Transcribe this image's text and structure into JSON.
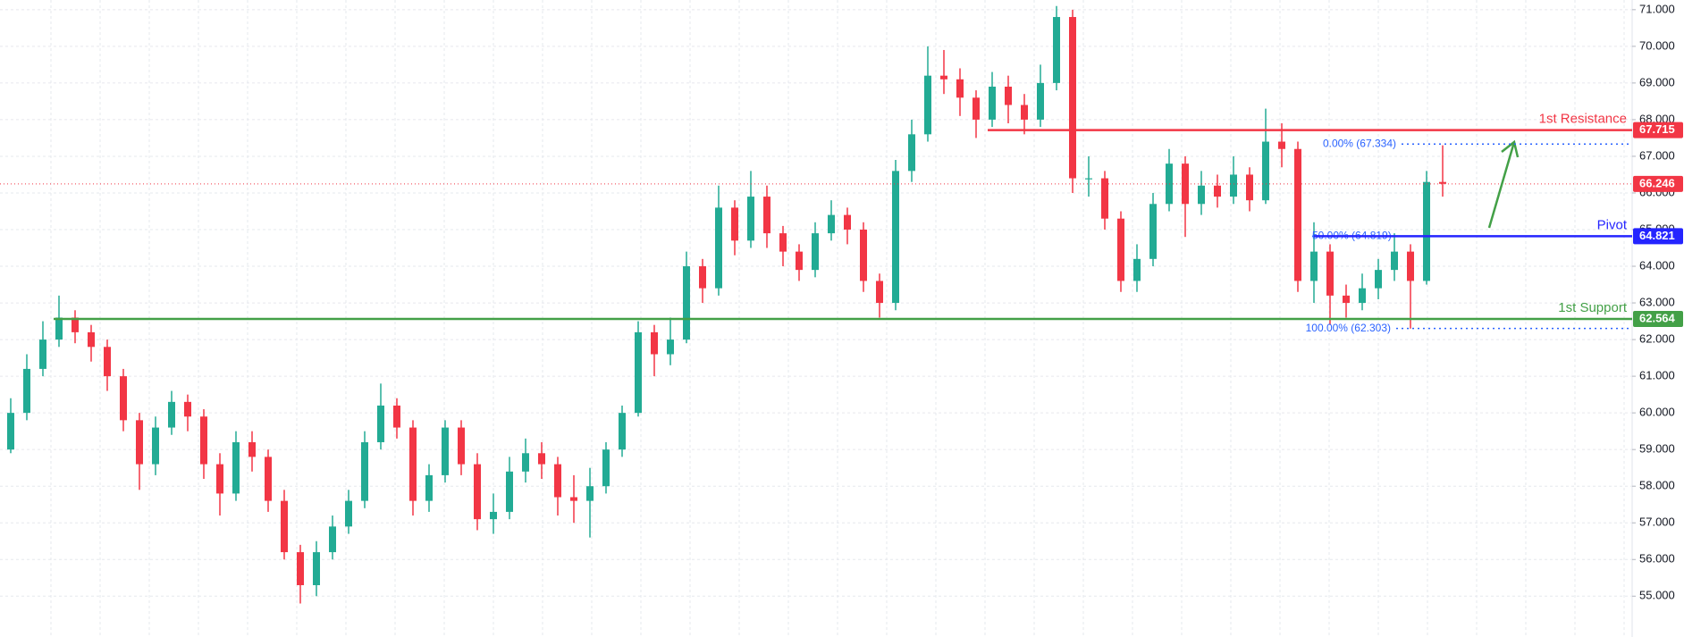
{
  "chart_data": {
    "type": "candlestick",
    "up_color": "#22ab94",
    "down_color": "#f23645",
    "open": [
      59.0,
      60.0,
      61.2,
      62.0,
      62.6,
      62.2,
      61.8,
      61.0,
      59.8,
      58.6,
      59.6,
      60.3,
      59.9,
      58.6,
      57.8,
      59.2,
      58.8,
      57.6,
      56.2,
      55.3,
      56.2,
      56.9,
      57.6,
      59.2,
      60.2,
      59.6,
      57.6,
      58.3,
      59.6,
      58.6,
      57.1,
      57.3,
      58.4,
      58.9,
      58.6,
      57.7,
      57.6,
      58.0,
      59.0,
      60.0,
      62.2,
      61.6,
      62.0,
      64.0,
      63.4,
      65.6,
      64.7,
      65.9,
      64.9,
      64.4,
      63.9,
      64.9,
      65.4,
      65.0,
      63.6,
      63.0,
      66.6,
      67.6,
      69.2,
      69.1,
      68.6,
      68.0,
      68.9,
      68.4,
      68.0,
      69.0,
      70.8,
      66.4,
      66.4,
      65.3,
      63.6,
      64.2,
      65.7,
      66.8,
      65.7,
      66.2,
      65.9,
      66.5,
      65.8,
      67.4,
      67.2,
      63.6,
      64.4,
      63.2,
      63.0,
      63.4,
      63.9,
      64.4,
      63.6,
      66.3
    ],
    "high": [
      60.4,
      61.6,
      62.5,
      63.2,
      62.8,
      62.4,
      62.0,
      61.2,
      60.0,
      59.9,
      60.6,
      60.5,
      60.1,
      58.9,
      59.5,
      59.5,
      59.0,
      57.9,
      56.4,
      56.5,
      57.2,
      57.9,
      59.5,
      60.8,
      60.4,
      59.8,
      58.6,
      59.8,
      59.8,
      58.9,
      57.8,
      58.8,
      59.3,
      59.2,
      58.8,
      58.3,
      58.5,
      59.2,
      60.2,
      62.5,
      62.4,
      62.6,
      64.4,
      64.2,
      66.2,
      65.8,
      66.6,
      66.2,
      65.1,
      64.6,
      65.2,
      65.8,
      65.6,
      65.2,
      63.8,
      66.9,
      68.0,
      70.0,
      69.9,
      69.4,
      68.8,
      69.3,
      69.2,
      68.7,
      69.5,
      71.1,
      71.0,
      67.0,
      66.6,
      65.5,
      64.6,
      66.0,
      67.2,
      67.0,
      66.6,
      66.5,
      67.0,
      66.7,
      68.3,
      67.9,
      67.4,
      65.2,
      64.6,
      63.5,
      63.8,
      64.2,
      64.9,
      64.6,
      66.6,
      67.3
    ],
    "low": [
      58.9,
      59.8,
      61.0,
      61.8,
      61.9,
      61.4,
      60.6,
      59.5,
      57.9,
      58.3,
      59.4,
      59.5,
      58.2,
      57.2,
      57.6,
      58.4,
      57.3,
      56.0,
      54.8,
      55.0,
      56.0,
      56.7,
      57.4,
      59.0,
      59.3,
      57.2,
      57.3,
      58.1,
      58.3,
      56.8,
      56.7,
      57.1,
      58.1,
      58.2,
      57.2,
      57.0,
      56.6,
      57.8,
      58.8,
      59.9,
      61.0,
      61.3,
      61.9,
      63.0,
      63.2,
      64.3,
      64.5,
      64.5,
      64.0,
      63.6,
      63.7,
      64.7,
      64.6,
      63.3,
      62.6,
      62.8,
      66.3,
      67.4,
      68.7,
      68.1,
      67.5,
      67.8,
      67.9,
      67.6,
      67.8,
      68.8,
      66.0,
      65.9,
      65.0,
      63.3,
      63.3,
      64.0,
      65.5,
      64.8,
      65.4,
      65.6,
      65.7,
      65.5,
      65.7,
      66.7,
      63.3,
      63.0,
      62.4,
      62.6,
      62.8,
      63.1,
      63.6,
      62.3,
      63.5,
      65.9
    ],
    "close": [
      60.0,
      61.2,
      62.0,
      62.6,
      62.2,
      61.8,
      61.0,
      59.8,
      58.6,
      59.6,
      60.3,
      59.9,
      58.6,
      57.8,
      59.2,
      58.8,
      57.6,
      56.2,
      55.3,
      56.2,
      56.9,
      57.6,
      59.2,
      60.2,
      59.6,
      57.6,
      58.3,
      59.6,
      58.6,
      57.1,
      57.3,
      58.4,
      58.9,
      58.6,
      57.7,
      57.6,
      58.0,
      59.0,
      60.0,
      62.2,
      61.6,
      62.0,
      64.0,
      63.4,
      65.6,
      64.7,
      65.9,
      64.9,
      64.4,
      63.9,
      64.9,
      65.4,
      65.0,
      63.6,
      63.0,
      66.6,
      67.6,
      69.2,
      69.1,
      68.6,
      68.0,
      68.9,
      68.4,
      68.0,
      69.0,
      70.8,
      66.4,
      66.4,
      65.3,
      63.6,
      64.2,
      65.7,
      66.8,
      65.7,
      66.2,
      65.9,
      66.5,
      65.8,
      67.4,
      67.2,
      63.6,
      64.4,
      63.2,
      63.0,
      63.4,
      63.9,
      64.4,
      63.6,
      66.3,
      66.25
    ],
    "ylim": [
      53.886,
      71.264
    ],
    "yticks": [
      {
        "value": 55,
        "label": "55.000"
      },
      {
        "value": 56,
        "label": "56.000"
      },
      {
        "value": 57,
        "label": "57.000"
      },
      {
        "value": 58,
        "label": "58.000"
      },
      {
        "value": 59,
        "label": "59.000"
      },
      {
        "value": 60,
        "label": "60.000"
      },
      {
        "value": 61,
        "label": "61.000"
      },
      {
        "value": 62,
        "label": "62.000"
      },
      {
        "value": 63,
        "label": "63.000"
      },
      {
        "value": 64,
        "label": "64.000"
      },
      {
        "value": 65,
        "label": "65.000"
      },
      {
        "value": 66,
        "label": "66.000"
      },
      {
        "value": 67,
        "label": "67.000"
      },
      {
        "value": 68,
        "label": "68.000"
      },
      {
        "value": 69,
        "label": "69.000"
      },
      {
        "value": 70,
        "label": "70.000"
      },
      {
        "value": 71,
        "label": "71.000"
      }
    ],
    "grid": true,
    "levels": [
      {
        "name": "1st Resistance",
        "value": 67.715,
        "color": "#f23645"
      },
      {
        "name": "1st Support",
        "value": 62.564,
        "color": "#43a047"
      },
      {
        "name": "Pivot",
        "value": 64.821,
        "color": "#2424ff"
      }
    ],
    "current_price": {
      "value": 66.246,
      "color": "#f23645"
    },
    "fibonacci": [
      {
        "value": 67.334,
        "label": "0.00% (67.334)"
      },
      {
        "value": 64.819,
        "label": "50.00% (64.819)"
      },
      {
        "value": 62.303,
        "label": "100.00% (62.303)"
      }
    ],
    "fib_color": "#2962ff"
  }
}
